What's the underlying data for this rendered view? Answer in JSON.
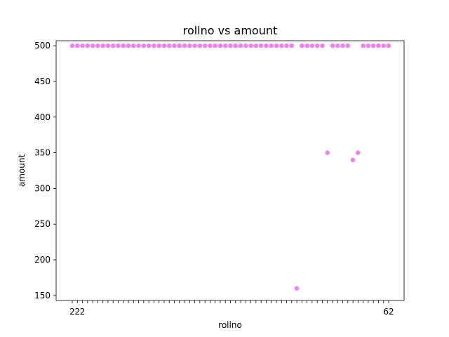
{
  "chart_data": {
    "type": "scatter",
    "title": "rollno vs amount",
    "xlabel": "rollno",
    "ylabel": "amount",
    "point_color": "#ee82ee",
    "y_ticks": [
      150,
      200,
      250,
      300,
      350,
      400,
      450,
      500
    ],
    "ylim": [
      143,
      507
    ],
    "grid": false,
    "x_tick_labels_legible": [
      "2",
      "2",
      "2",
      "62"
    ],
    "points": [
      {
        "pos": 0,
        "y": 500
      },
      {
        "pos": 1,
        "y": 500
      },
      {
        "pos": 2,
        "y": 500
      },
      {
        "pos": 3,
        "y": 500
      },
      {
        "pos": 4,
        "y": 500
      },
      {
        "pos": 5,
        "y": 500
      },
      {
        "pos": 6,
        "y": 500
      },
      {
        "pos": 7,
        "y": 500
      },
      {
        "pos": 8,
        "y": 500
      },
      {
        "pos": 9,
        "y": 500
      },
      {
        "pos": 10,
        "y": 500
      },
      {
        "pos": 11,
        "y": 500
      },
      {
        "pos": 12,
        "y": 500
      },
      {
        "pos": 13,
        "y": 500
      },
      {
        "pos": 14,
        "y": 500
      },
      {
        "pos": 15,
        "y": 500
      },
      {
        "pos": 16,
        "y": 500
      },
      {
        "pos": 17,
        "y": 500
      },
      {
        "pos": 18,
        "y": 500
      },
      {
        "pos": 19,
        "y": 500
      },
      {
        "pos": 20,
        "y": 500
      },
      {
        "pos": 21,
        "y": 500
      },
      {
        "pos": 22,
        "y": 500
      },
      {
        "pos": 23,
        "y": 500
      },
      {
        "pos": 24,
        "y": 500
      },
      {
        "pos": 25,
        "y": 500
      },
      {
        "pos": 26,
        "y": 500
      },
      {
        "pos": 27,
        "y": 500
      },
      {
        "pos": 28,
        "y": 500
      },
      {
        "pos": 29,
        "y": 500
      },
      {
        "pos": 30,
        "y": 500
      },
      {
        "pos": 31,
        "y": 500
      },
      {
        "pos": 32,
        "y": 500
      },
      {
        "pos": 33,
        "y": 500
      },
      {
        "pos": 34,
        "y": 500
      },
      {
        "pos": 35,
        "y": 500
      },
      {
        "pos": 36,
        "y": 500
      },
      {
        "pos": 37,
        "y": 500
      },
      {
        "pos": 38,
        "y": 500
      },
      {
        "pos": 39,
        "y": 500
      },
      {
        "pos": 40,
        "y": 500
      },
      {
        "pos": 41,
        "y": 500
      },
      {
        "pos": 42,
        "y": 500
      },
      {
        "pos": 43,
        "y": 500
      },
      {
        "pos": 44,
        "y": 160
      },
      {
        "pos": 45,
        "y": 500
      },
      {
        "pos": 46,
        "y": 500
      },
      {
        "pos": 47,
        "y": 500
      },
      {
        "pos": 48,
        "y": 500
      },
      {
        "pos": 49,
        "y": 500
      },
      {
        "pos": 50,
        "y": 350
      },
      {
        "pos": 51,
        "y": 500
      },
      {
        "pos": 52,
        "y": 500
      },
      {
        "pos": 53,
        "y": 500
      },
      {
        "pos": 54,
        "y": 500
      },
      {
        "pos": 55,
        "y": 340
      },
      {
        "pos": 56,
        "y": 350
      },
      {
        "pos": 57,
        "y": 500
      },
      {
        "pos": 58,
        "y": 500
      },
      {
        "pos": 59,
        "y": 500
      },
      {
        "pos": 60,
        "y": 500
      },
      {
        "pos": 61,
        "y": 500
      },
      {
        "pos": 62,
        "y": 500
      }
    ]
  }
}
